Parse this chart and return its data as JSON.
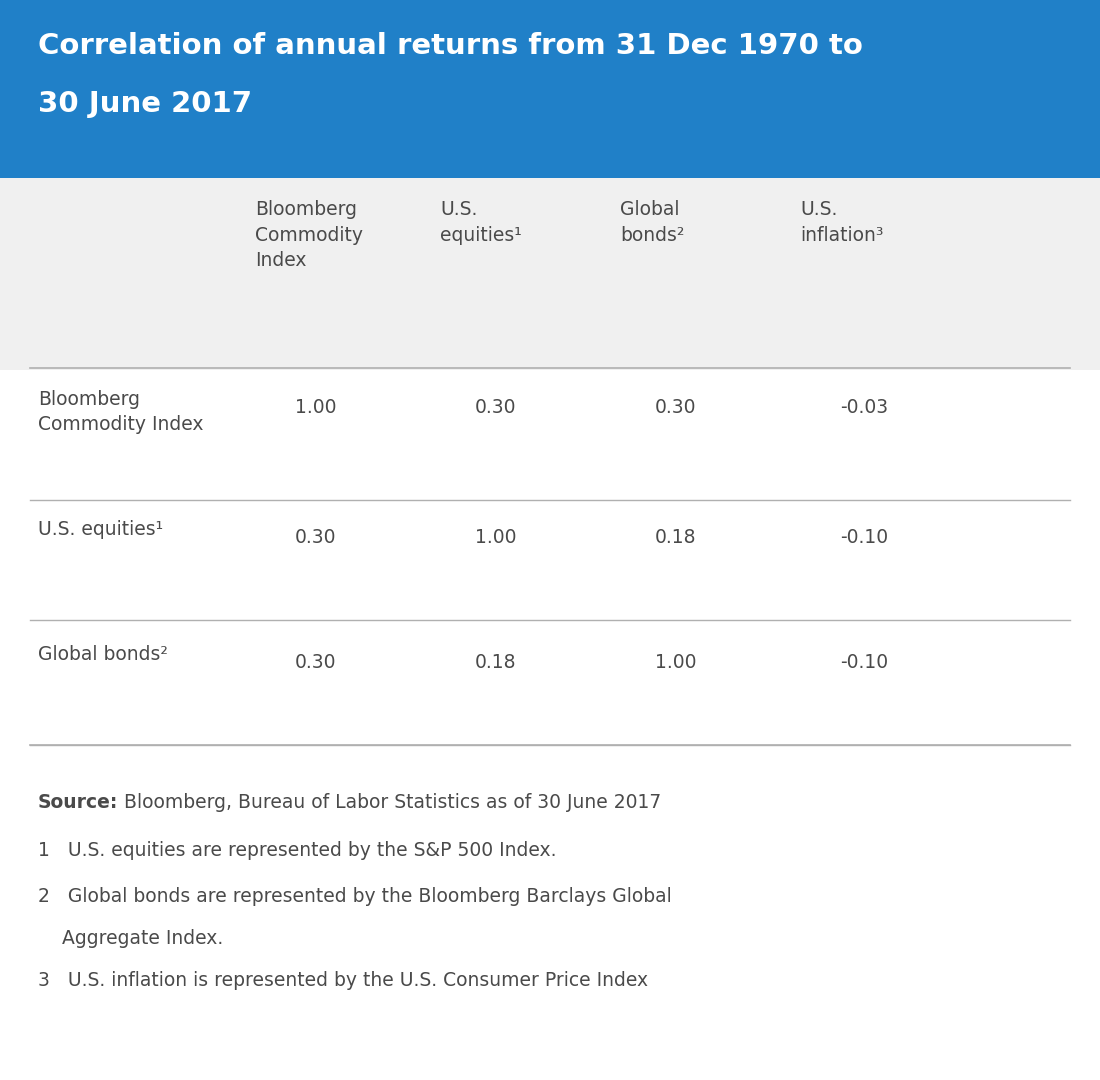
{
  "title_line1": "Correlation of annual returns from 31 Dec 1970 to",
  "title_line2": "30 June 2017",
  "title_bg_color": "#2080c8",
  "title_text_color": "#ffffff",
  "table_header_bg_color": "#f0f0f0",
  "body_bg_color": "#ffffff",
  "col_headers": [
    "Bloomberg\nCommodity\nIndex",
    "U.S.\nequities¹",
    "Global\nbonds²",
    "U.S.\ninflation³"
  ],
  "row_labels": [
    "Bloomberg\nCommodity Index",
    "U.S. equities¹",
    "Global bonds²"
  ],
  "data": [
    [
      "1.00",
      "0.30",
      "0.30",
      "-0.03"
    ],
    [
      "0.30",
      "1.00",
      "0.18",
      "-0.10"
    ],
    [
      "0.30",
      "0.18",
      "1.00",
      "-0.10"
    ]
  ],
  "source_bold": "Source:",
  "source_text": " Bloomberg, Bureau of Labor Statistics as of 30 June 2017",
  "footnote1": "1   U.S. equities are represented by the S&P 500 Index.",
  "footnote2a": "2   Global bonds are represented by the Bloomberg Barclays Global",
  "footnote2b": "    Aggregate Index.",
  "footnote3": "3   U.S. inflation is represented by the U.S. Consumer Price Index",
  "line_color": "#b0b0b0",
  "text_color": "#4a4a4a"
}
